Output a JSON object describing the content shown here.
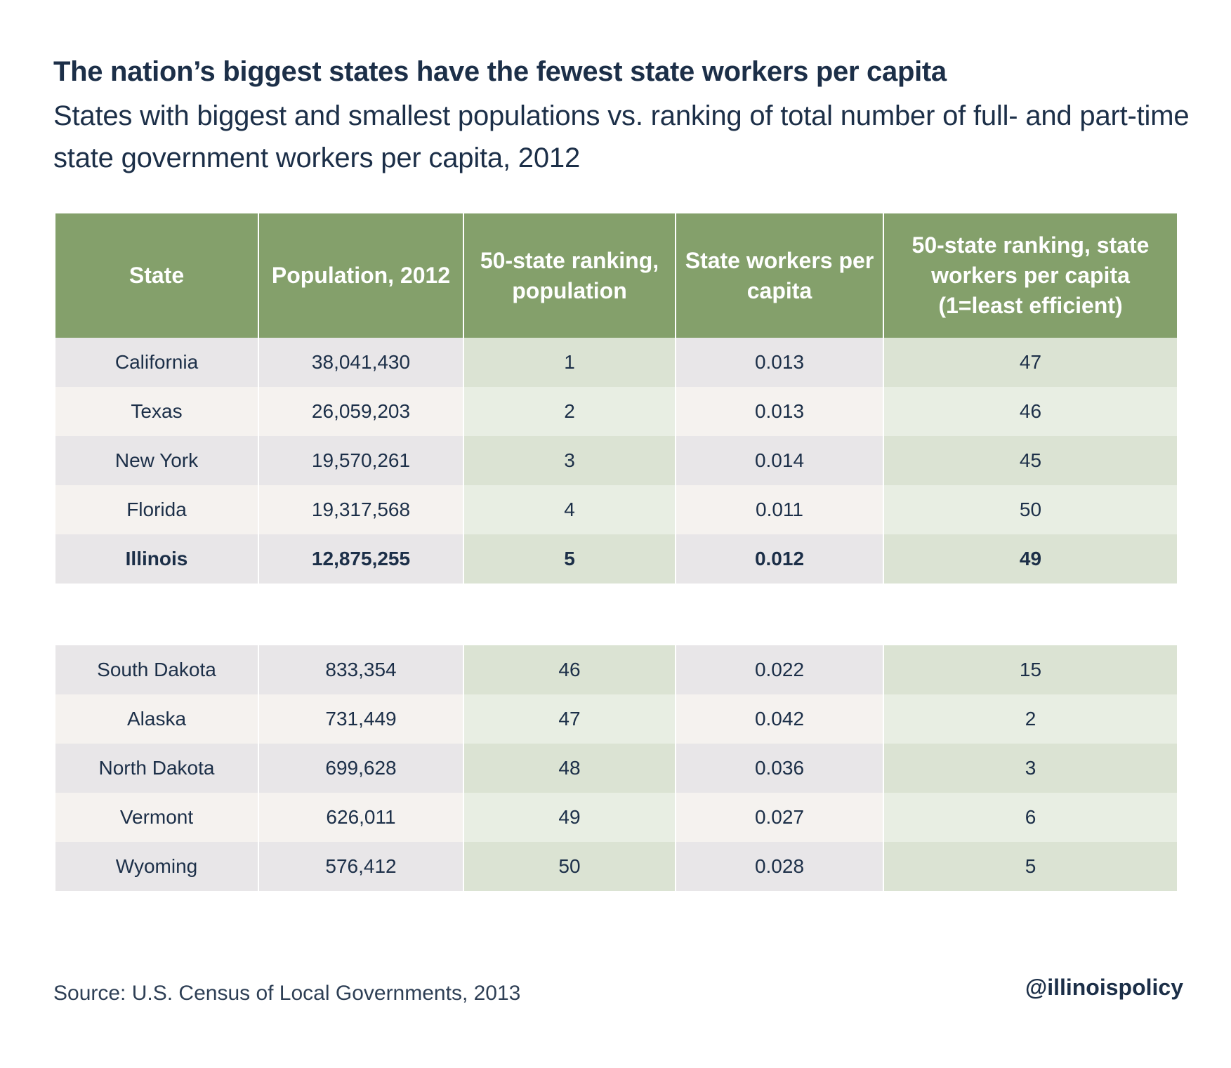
{
  "title": "The nation’s biggest states have the fewest state workers per capita",
  "subtitle": "States with biggest and smallest populations vs. ranking of total number of full- and part-time state government workers per capita, 2012",
  "source": "Source: U.S. Census of Local Governments, 2013",
  "handle": "@illinoispolicy",
  "colors": {
    "header": "#84a06b",
    "text": "#1c2f48"
  },
  "chart_data": {
    "type": "table",
    "columns": [
      "State",
      "Population, 2012",
      "50-state ranking, population",
      "State workers per capita",
      "50-state ranking, state workers per capita (1=least efficient)"
    ],
    "highlighted_row": "Illinois",
    "groups": [
      {
        "rows": [
          [
            "California",
            "38,041,430",
            "1",
            "0.013",
            "47"
          ],
          [
            "Texas",
            "26,059,203",
            "2",
            "0.013",
            "46"
          ],
          [
            "New York",
            "19,570,261",
            "3",
            "0.014",
            "45"
          ],
          [
            "Florida",
            "19,317,568",
            "4",
            "0.011",
            "50"
          ],
          [
            "Illinois",
            "12,875,255",
            "5",
            "0.012",
            "49"
          ]
        ]
      },
      {
        "rows": [
          [
            "South Dakota",
            "833,354",
            "46",
            "0.022",
            "15"
          ],
          [
            "Alaska",
            "731,449",
            "47",
            "0.042",
            "2"
          ],
          [
            "North Dakota",
            "699,628",
            "48",
            "0.036",
            "3"
          ],
          [
            "Vermont",
            "626,011",
            "49",
            "0.027",
            "6"
          ],
          [
            "Wyoming",
            "576,412",
            "50",
            "0.028",
            "5"
          ]
        ]
      }
    ]
  }
}
